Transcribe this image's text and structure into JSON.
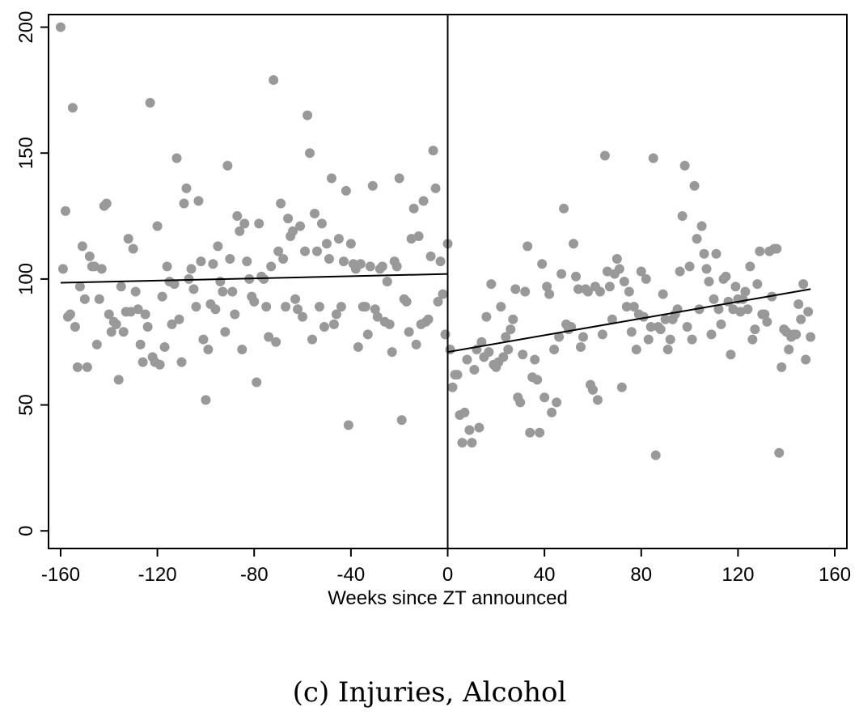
{
  "chart_data": {
    "type": "scatter",
    "title": "",
    "xlabel": "Weeks since ZT announced",
    "ylabel": "",
    "xlim": [
      -165,
      165
    ],
    "ylim": [
      -7,
      205
    ],
    "xticks": [
      "-160",
      "-120",
      "-80",
      "-40",
      "0",
      "40",
      "80",
      "120",
      "160"
    ],
    "yticks": [
      "0",
      "50",
      "100",
      "150",
      "200"
    ],
    "grid": false,
    "legend": "none",
    "marker_color": "#999999",
    "line_color": "#000000",
    "cutoff_x": 0,
    "points": [
      [
        -160,
        200
      ],
      [
        -159,
        104
      ],
      [
        -158,
        127
      ],
      [
        -157,
        85
      ],
      [
        -156,
        86
      ],
      [
        -155,
        168
      ],
      [
        -154,
        81
      ],
      [
        -153,
        65
      ],
      [
        -152,
        97
      ],
      [
        -151,
        113
      ],
      [
        -150,
        92
      ],
      [
        -149,
        65
      ],
      [
        -148,
        109
      ],
      [
        -147,
        105
      ],
      [
        -146,
        105
      ],
      [
        -145,
        74
      ],
      [
        -144,
        92
      ],
      [
        -143,
        104
      ],
      [
        -142,
        129
      ],
      [
        -141,
        130
      ],
      [
        -140,
        86
      ],
      [
        -139,
        79
      ],
      [
        -138,
        83
      ],
      [
        -137,
        82
      ],
      [
        -136,
        60
      ],
      [
        -135,
        97
      ],
      [
        -134,
        79
      ],
      [
        -133,
        87
      ],
      [
        -132,
        116
      ],
      [
        -131,
        87
      ],
      [
        -130,
        112
      ],
      [
        -129,
        95
      ],
      [
        -128,
        88
      ],
      [
        -127,
        74
      ],
      [
        -126,
        67
      ],
      [
        -125,
        86
      ],
      [
        -124,
        81
      ],
      [
        -123,
        170
      ],
      [
        -122,
        69
      ],
      [
        -121,
        67
      ],
      [
        -120,
        121
      ],
      [
        -119,
        66
      ],
      [
        -118,
        93
      ],
      [
        -117,
        73
      ],
      [
        -116,
        105
      ],
      [
        -115,
        99
      ],
      [
        -114,
        82
      ],
      [
        -113,
        98
      ],
      [
        -112,
        148
      ],
      [
        -111,
        84
      ],
      [
        -110,
        67
      ],
      [
        -109,
        130
      ],
      [
        -108,
        136
      ],
      [
        -107,
        100
      ],
      [
        -106,
        104
      ],
      [
        -105,
        96
      ],
      [
        -104,
        89
      ],
      [
        -103,
        131
      ],
      [
        -102,
        107
      ],
      [
        -101,
        76
      ],
      [
        -100,
        52
      ],
      [
        -99,
        72
      ],
      [
        -98,
        90
      ],
      [
        -97,
        106
      ],
      [
        -96,
        88
      ],
      [
        -95,
        113
      ],
      [
        -94,
        99
      ],
      [
        -93,
        95
      ],
      [
        -92,
        79
      ],
      [
        -91,
        145
      ],
      [
        -90,
        108
      ],
      [
        -89,
        95
      ],
      [
        -88,
        86
      ],
      [
        -87,
        125
      ],
      [
        -86,
        119
      ],
      [
        -85,
        72
      ],
      [
        -84,
        122
      ],
      [
        -83,
        107
      ],
      [
        -82,
        100
      ],
      [
        -81,
        93
      ],
      [
        -80,
        91
      ],
      [
        -79,
        59
      ],
      [
        -78,
        122
      ],
      [
        -77,
        101
      ],
      [
        -76,
        100
      ],
      [
        -75,
        89
      ],
      [
        -74,
        77
      ],
      [
        -73,
        105
      ],
      [
        -72,
        179
      ],
      [
        -71,
        75
      ],
      [
        -70,
        111
      ],
      [
        -69,
        130
      ],
      [
        -68,
        108
      ],
      [
        -67,
        89
      ],
      [
        -66,
        124
      ],
      [
        -65,
        117
      ],
      [
        -64,
        119
      ],
      [
        -63,
        92
      ],
      [
        -62,
        88
      ],
      [
        -61,
        121
      ],
      [
        -60,
        85
      ],
      [
        -59,
        111
      ],
      [
        -58,
        165
      ],
      [
        -57,
        150
      ],
      [
        -56,
        76
      ],
      [
        -55,
        126
      ],
      [
        -54,
        111
      ],
      [
        -53,
        89
      ],
      [
        -52,
        122
      ],
      [
        -51,
        81
      ],
      [
        -50,
        114
      ],
      [
        -49,
        108
      ],
      [
        -48,
        140
      ],
      [
        -47,
        82
      ],
      [
        -46,
        86
      ],
      [
        -45,
        116
      ],
      [
        -44,
        89
      ],
      [
        -43,
        107
      ],
      [
        -42,
        135
      ],
      [
        -41,
        42
      ],
      [
        -40,
        114
      ],
      [
        -39,
        106
      ],
      [
        -38,
        104
      ],
      [
        -37,
        73
      ],
      [
        -36,
        106
      ],
      [
        -35,
        89
      ],
      [
        -34,
        89
      ],
      [
        -33,
        78
      ],
      [
        -32,
        105
      ],
      [
        -31,
        137
      ],
      [
        -30,
        88
      ],
      [
        -29,
        85
      ],
      [
        -28,
        104
      ],
      [
        -27,
        105
      ],
      [
        -26,
        83
      ],
      [
        -25,
        99
      ],
      [
        -24,
        82
      ],
      [
        -23,
        71
      ],
      [
        -22,
        107
      ],
      [
        -21,
        105
      ],
      [
        -20,
        140
      ],
      [
        -19,
        44
      ],
      [
        -18,
        92
      ],
      [
        -17,
        91
      ],
      [
        -16,
        79
      ],
      [
        -15,
        116
      ],
      [
        -14,
        128
      ],
      [
        -13,
        74
      ],
      [
        -12,
        117
      ],
      [
        -11,
        82
      ],
      [
        -10,
        131
      ],
      [
        -9,
        83
      ],
      [
        -8,
        84
      ],
      [
        -7,
        109
      ],
      [
        -6,
        151
      ],
      [
        -5,
        136
      ],
      [
        -4,
        91
      ],
      [
        -3,
        107
      ],
      [
        -2,
        94
      ],
      [
        -1,
        78
      ],
      [
        0,
        114
      ],
      [
        1,
        72
      ],
      [
        2,
        57
      ],
      [
        3,
        62
      ],
      [
        4,
        62
      ],
      [
        5,
        46
      ],
      [
        6,
        35
      ],
      [
        7,
        47
      ],
      [
        8,
        68
      ],
      [
        9,
        40
      ],
      [
        10,
        35
      ],
      [
        11,
        64
      ],
      [
        12,
        72
      ],
      [
        13,
        41
      ],
      [
        14,
        75
      ],
      [
        15,
        69
      ],
      [
        16,
        85
      ],
      [
        17,
        71
      ],
      [
        18,
        98
      ],
      [
        19,
        66
      ],
      [
        20,
        65
      ],
      [
        21,
        67
      ],
      [
        22,
        89
      ],
      [
        23,
        69
      ],
      [
        24,
        77
      ],
      [
        25,
        72
      ],
      [
        26,
        80
      ],
      [
        27,
        84
      ],
      [
        28,
        96
      ],
      [
        29,
        53
      ],
      [
        30,
        51
      ],
      [
        31,
        70
      ],
      [
        32,
        95
      ],
      [
        33,
        113
      ],
      [
        34,
        39
      ],
      [
        35,
        61
      ],
      [
        36,
        68
      ],
      [
        37,
        60
      ],
      [
        38,
        39
      ],
      [
        39,
        106
      ],
      [
        40,
        53
      ],
      [
        41,
        97
      ],
      [
        42,
        94
      ],
      [
        43,
        47
      ],
      [
        44,
        72
      ],
      [
        45,
        51
      ],
      [
        46,
        77
      ],
      [
        47,
        102
      ],
      [
        48,
        128
      ],
      [
        49,
        82
      ],
      [
        50,
        80
      ],
      [
        51,
        81
      ],
      [
        52,
        114
      ],
      [
        53,
        101
      ],
      [
        54,
        96
      ],
      [
        55,
        73
      ],
      [
        56,
        77
      ],
      [
        57,
        96
      ],
      [
        58,
        95
      ],
      [
        59,
        58
      ],
      [
        60,
        56
      ],
      [
        61,
        97
      ],
      [
        62,
        52
      ],
      [
        63,
        95
      ],
      [
        64,
        78
      ],
      [
        65,
        149
      ],
      [
        66,
        103
      ],
      [
        67,
        97
      ],
      [
        68,
        84
      ],
      [
        69,
        102
      ],
      [
        70,
        108
      ],
      [
        71,
        104
      ],
      [
        72,
        57
      ],
      [
        73,
        99
      ],
      [
        74,
        89
      ],
      [
        75,
        95
      ],
      [
        76,
        79
      ],
      [
        77,
        89
      ],
      [
        78,
        72
      ],
      [
        79,
        86
      ],
      [
        80,
        103
      ],
      [
        81,
        85
      ],
      [
        82,
        100
      ],
      [
        83,
        76
      ],
      [
        84,
        81
      ],
      [
        85,
        148
      ],
      [
        86,
        30
      ],
      [
        87,
        81
      ],
      [
        88,
        80
      ],
      [
        89,
        94
      ],
      [
        90,
        84
      ],
      [
        91,
        72
      ],
      [
        92,
        76
      ],
      [
        93,
        84
      ],
      [
        94,
        86
      ],
      [
        95,
        88
      ],
      [
        96,
        103
      ],
      [
        97,
        125
      ],
      [
        98,
        145
      ],
      [
        99,
        81
      ],
      [
        100,
        105
      ],
      [
        101,
        76
      ],
      [
        102,
        137
      ],
      [
        103,
        116
      ],
      [
        104,
        88
      ],
      [
        105,
        121
      ],
      [
        106,
        110
      ],
      [
        107,
        104
      ],
      [
        108,
        99
      ],
      [
        109,
        78
      ],
      [
        110,
        92
      ],
      [
        111,
        110
      ],
      [
        112,
        88
      ],
      [
        113,
        82
      ],
      [
        114,
        100
      ],
      [
        115,
        101
      ],
      [
        116,
        91
      ],
      [
        117,
        70
      ],
      [
        118,
        88
      ],
      [
        119,
        97
      ],
      [
        120,
        92
      ],
      [
        121,
        87
      ],
      [
        122,
        92
      ],
      [
        123,
        95
      ],
      [
        124,
        88
      ],
      [
        125,
        105
      ],
      [
        126,
        76
      ],
      [
        127,
        80
      ],
      [
        128,
        98
      ],
      [
        129,
        111
      ],
      [
        130,
        86
      ],
      [
        131,
        86
      ],
      [
        132,
        83
      ],
      [
        133,
        111
      ],
      [
        134,
        93
      ],
      [
        135,
        112
      ],
      [
        136,
        112
      ],
      [
        137,
        31
      ],
      [
        138,
        65
      ],
      [
        139,
        80
      ],
      [
        140,
        79
      ],
      [
        141,
        72
      ],
      [
        142,
        77
      ],
      [
        143,
        78
      ],
      [
        144,
        78
      ],
      [
        145,
        90
      ],
      [
        146,
        84
      ],
      [
        147,
        98
      ],
      [
        148,
        68
      ],
      [
        149,
        87
      ],
      [
        150,
        77
      ]
    ],
    "fit_lines": [
      {
        "x": [
          -160,
          0
        ],
        "y": [
          98.5,
          102
        ]
      },
      {
        "x": [
          0,
          150
        ],
        "y": [
          71,
          96
        ]
      }
    ]
  },
  "caption": "(c) Injuries, Alcohol"
}
